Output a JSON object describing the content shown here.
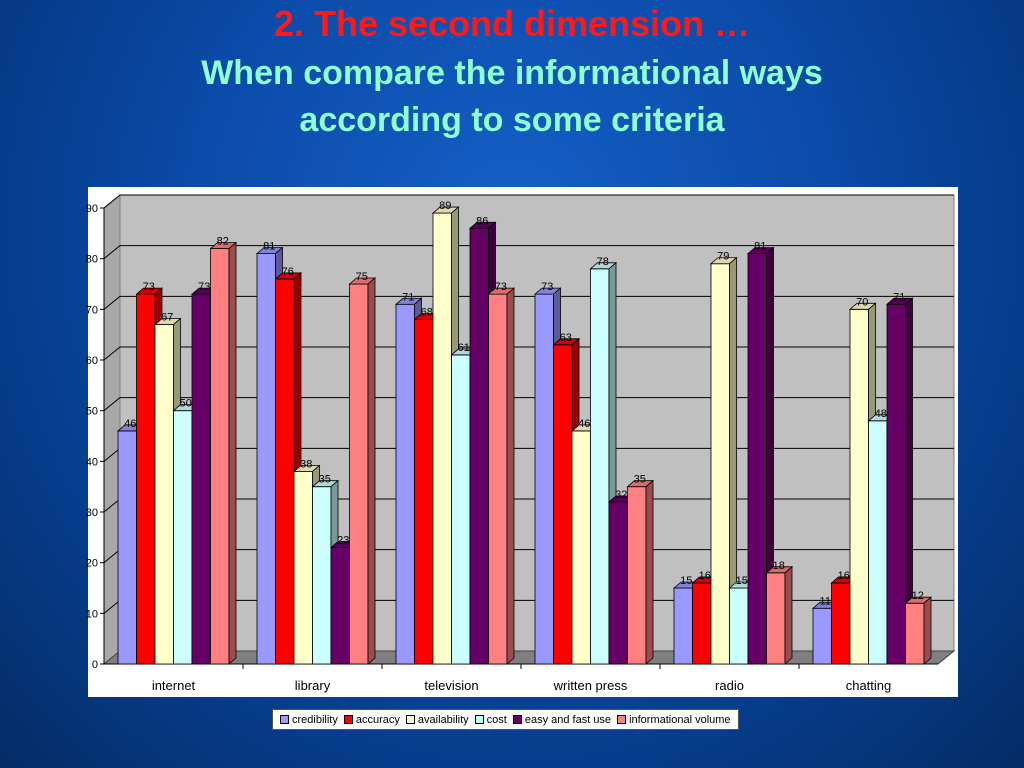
{
  "slide": {
    "title_line1": "2. The second dimension …",
    "title_line2": "When compare the informational ways",
    "title_line3": "according to some criteria"
  },
  "chart_data": {
    "type": "bar",
    "style": "3d-clustered-column",
    "categories": [
      "internet",
      "library",
      "television",
      "written press",
      "radio",
      "chatting"
    ],
    "ylim": [
      0,
      90
    ],
    "yticks": [
      0,
      10,
      20,
      30,
      40,
      50,
      60,
      70,
      80,
      90
    ],
    "grid": true,
    "legend_position": "bottom",
    "series": [
      {
        "name": "credibility",
        "color": "#9999ff",
        "values": [
          46,
          81,
          71,
          73,
          15,
          11
        ]
      },
      {
        "name": "accuracy",
        "color": "#ff0000",
        "values": [
          73,
          76,
          68,
          63,
          16,
          16
        ]
      },
      {
        "name": "availability",
        "color": "#ffffcc",
        "values": [
          67,
          38,
          89,
          46,
          79,
          70
        ]
      },
      {
        "name": "cost",
        "color": "#ccffff",
        "values": [
          50,
          35,
          61,
          78,
          15,
          48
        ]
      },
      {
        "name": "easy and fast use",
        "color": "#660066",
        "values": [
          73,
          23,
          86,
          32,
          81,
          71
        ]
      },
      {
        "name": "informational volume",
        "color": "#ff8080",
        "values": [
          82,
          75,
          73,
          35,
          18,
          12
        ]
      }
    ]
  }
}
